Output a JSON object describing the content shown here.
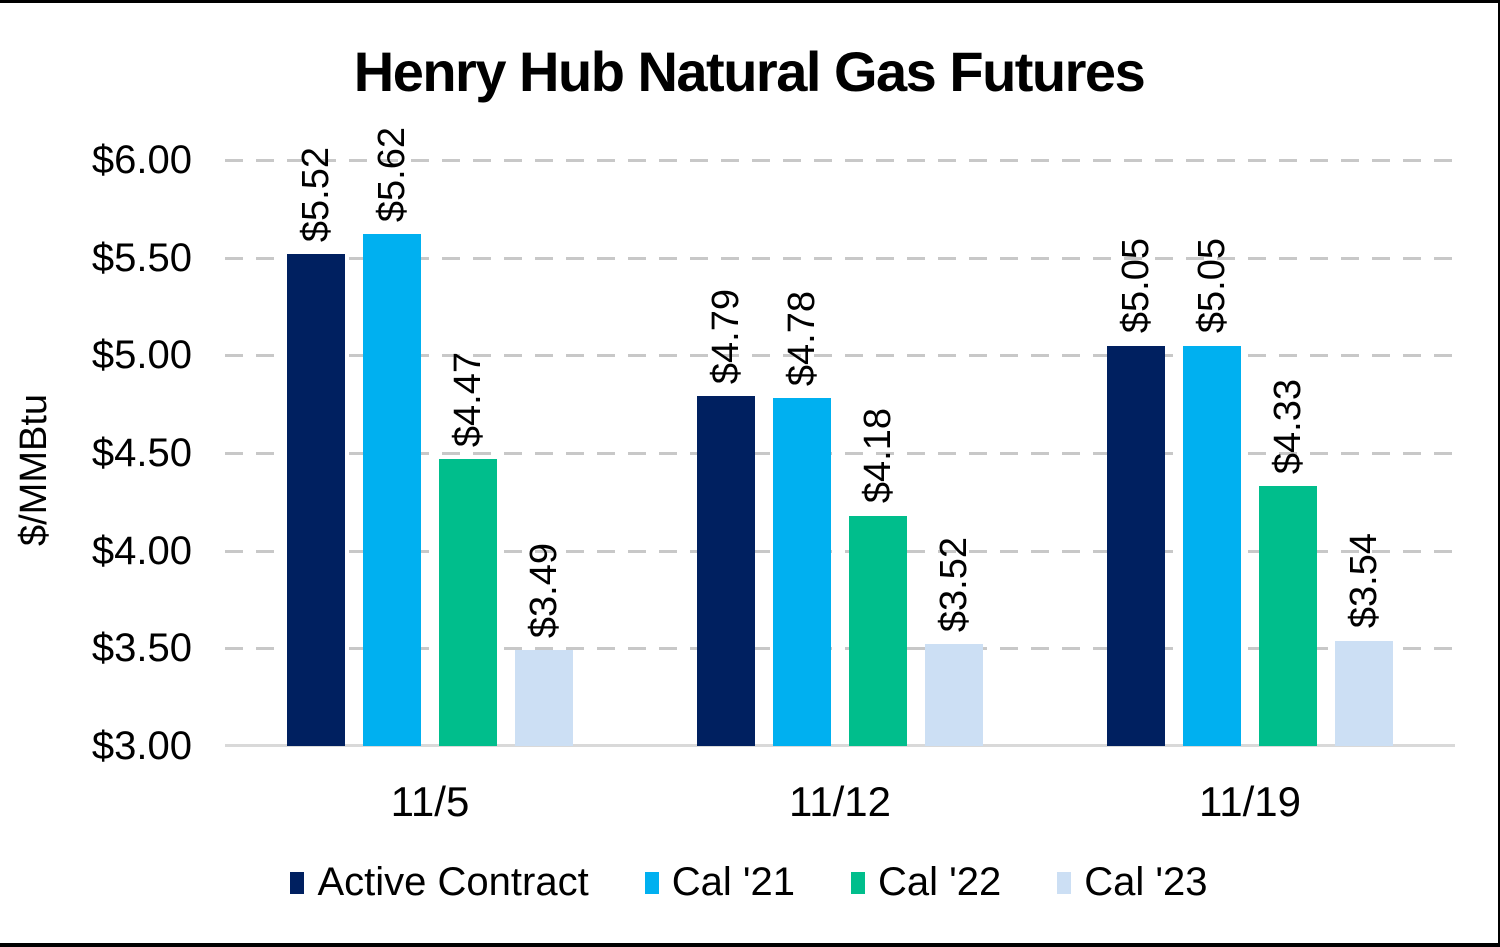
{
  "chart_data": {
    "type": "bar",
    "title": "Henry Hub Natural Gas Futures",
    "ylabel": "$/MMBtu",
    "xlabel": "",
    "categories": [
      "11/5",
      "11/12",
      "11/19"
    ],
    "series": [
      {
        "name": "Active Contract",
        "color": "#002060",
        "values": [
          5.52,
          4.79,
          5.05
        ],
        "labels": [
          "$5.52",
          "$4.79",
          "$5.05"
        ]
      },
      {
        "name": "Cal '21",
        "color": "#00B0F0",
        "values": [
          5.62,
          4.78,
          5.05
        ],
        "labels": [
          "$5.62",
          "$4.78",
          "$5.05"
        ]
      },
      {
        "name": "Cal '22",
        "color": "#00BE8C",
        "values": [
          4.47,
          4.18,
          4.33
        ],
        "labels": [
          "$4.47",
          "$4.18",
          "$4.33"
        ]
      },
      {
        "name": "Cal '23",
        "color": "#CCDFF4",
        "values": [
          3.49,
          3.52,
          3.54
        ],
        "labels": [
          "$3.49",
          "$3.52",
          "$3.54"
        ]
      }
    ],
    "ylim": [
      3.0,
      6.0
    ],
    "yticks": [
      {
        "value": 6.0,
        "label": "$6.00"
      },
      {
        "value": 5.5,
        "label": "$5.50"
      },
      {
        "value": 5.0,
        "label": "$5.00"
      },
      {
        "value": 4.5,
        "label": "$4.50"
      },
      {
        "value": 4.0,
        "label": "$4.00"
      },
      {
        "value": 3.5,
        "label": "$3.50"
      },
      {
        "value": 3.0,
        "label": "$3.00"
      }
    ],
    "grid": "horizontal-dashed",
    "legend_position": "bottom",
    "gridline_color": "#c8c8c8",
    "axis_line_color": "#d9d9d9"
  }
}
